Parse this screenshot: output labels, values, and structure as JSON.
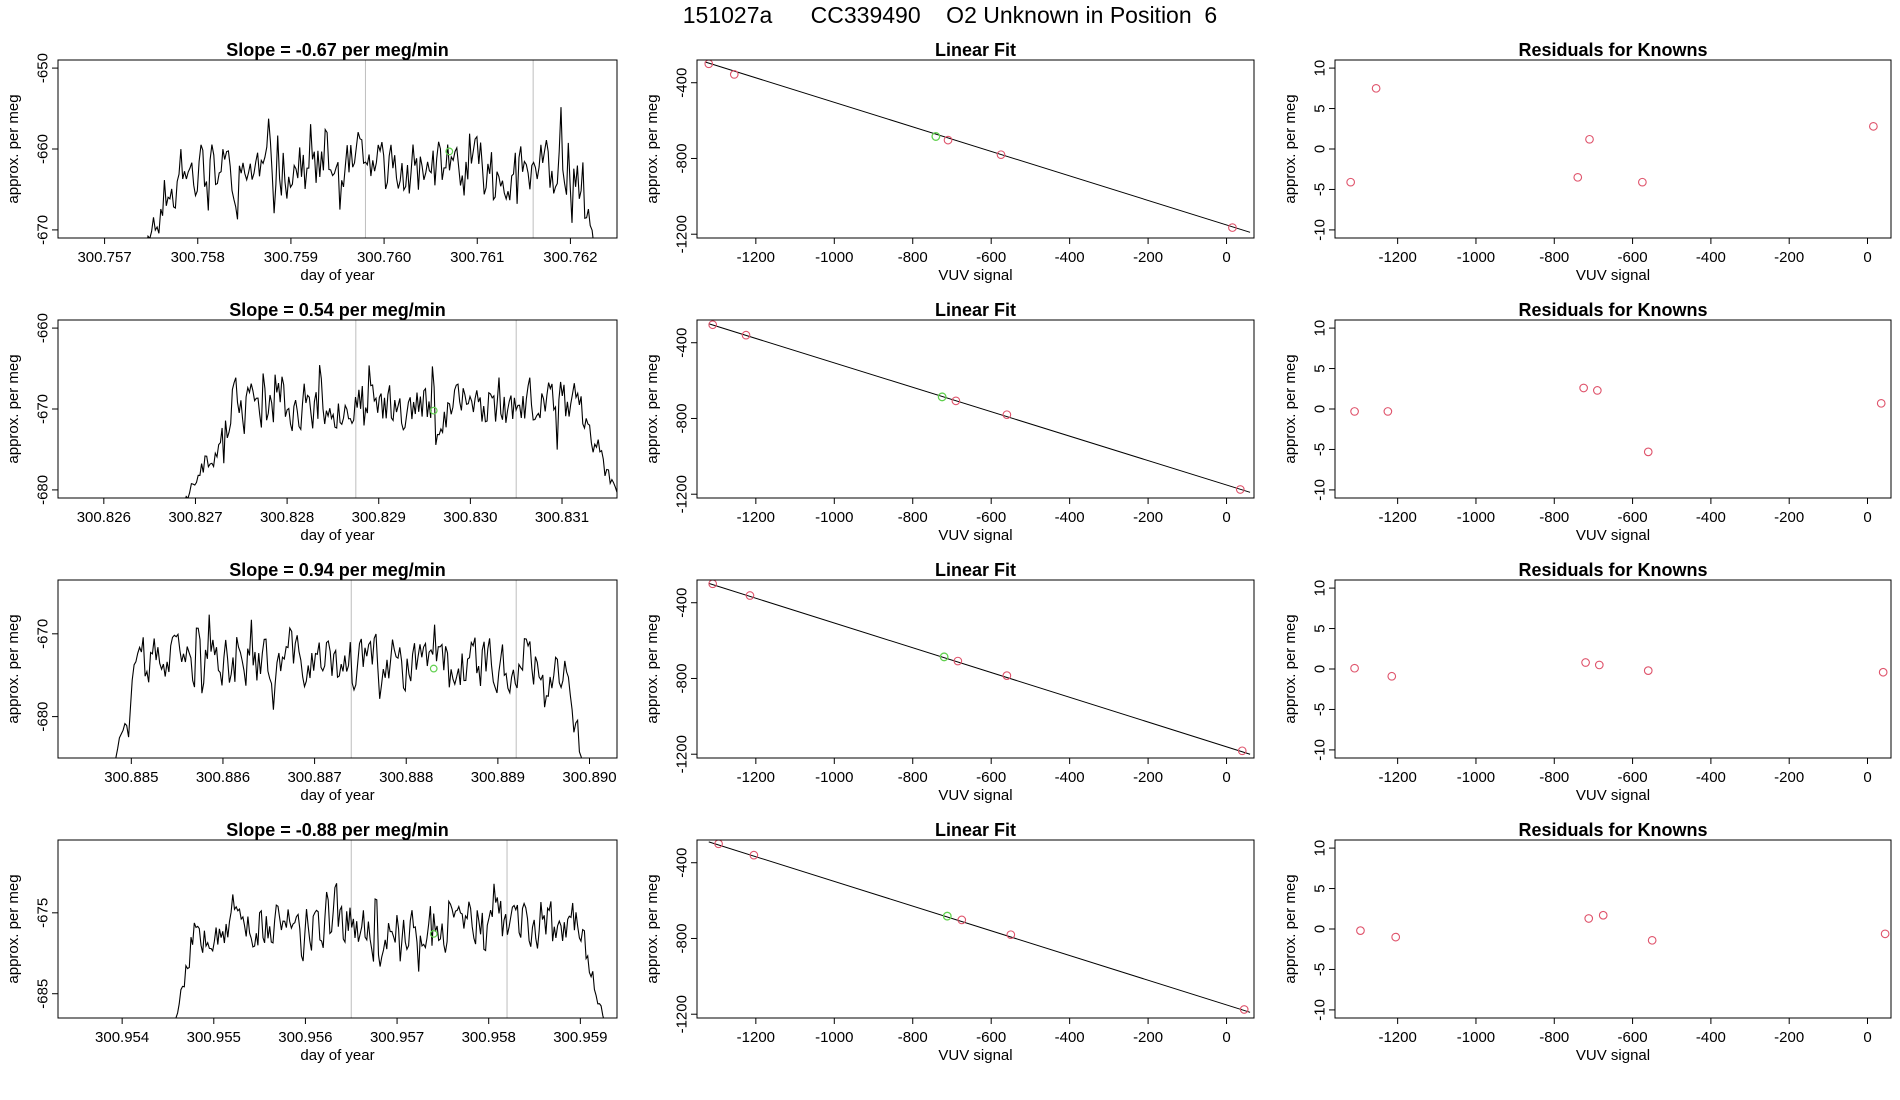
{
  "page": {
    "title": "151027a      CC339490    O2 Unknown in Position  6"
  },
  "chart_data": [
    {
      "type": "line",
      "row": 0,
      "panel": "timeseries",
      "title": "Slope =  -0.67  per meg/min",
      "xlabel": "day of year",
      "ylabel": "approx. per meg",
      "xlim": [
        300.7565,
        300.7625
      ],
      "ylim": [
        -671,
        -649
      ],
      "xticks": [
        300.757,
        300.758,
        300.759,
        300.76,
        300.761,
        300.762
      ],
      "xtick_labels": [
        "300.757",
        "300.758",
        "300.759",
        "300.760",
        "300.761",
        "300.762"
      ],
      "yticks": [
        -650,
        -660,
        -670
      ],
      "ytick_labels": [
        "-650",
        "-660",
        "-670"
      ],
      "vlines": [
        300.7598,
        300.7616
      ],
      "series": [
        {
          "start_x": 300.75725,
          "end_x": 300.76235,
          "start_y": -676,
          "end_y": -676,
          "level": -662.5,
          "amp": 3.2,
          "seed": 11,
          "rise": 0.0006,
          "fall": 0.0003
        }
      ],
      "marker": {
        "x": 300.7607,
        "y": -660.3
      }
    },
    {
      "type": "scatter",
      "row": 0,
      "panel": "fit",
      "title": "Linear Fit",
      "xlabel": "VUV signal",
      "ylabel": "approx. per meg",
      "xlim": [
        -1350,
        70
      ],
      "ylim": [
        -1220,
        -280
      ],
      "xticks": [
        -1200,
        -1000,
        -800,
        -600,
        -400,
        -200,
        0
      ],
      "xtick_labels": [
        "-1200",
        "-1000",
        "-800",
        "-600",
        "-400",
        "-200",
        "0"
      ],
      "yticks": [
        -400,
        -800,
        -1200
      ],
      "ytick_labels": [
        "-400",
        "-800",
        "-1200"
      ],
      "fit_line": {
        "x": [
          -1330,
          60
        ],
        "y": [
          -290,
          -1190
        ]
      },
      "knowns": {
        "x": [
          -1320,
          -1255,
          -710,
          -575,
          15
        ],
        "y": [
          -300,
          -356,
          -703,
          -780,
          -1165
        ]
      },
      "unknown": {
        "x": [
          -741
        ],
        "y": [
          -684
        ]
      }
    },
    {
      "type": "scatter",
      "row": 0,
      "panel": "residuals",
      "title": "Residuals for Knowns",
      "xlabel": "VUV signal",
      "ylabel": "approx. per meg",
      "xlim": [
        -1360,
        60
      ],
      "ylim": [
        -11,
        11
      ],
      "xticks": [
        -1200,
        -1000,
        -800,
        -600,
        -400,
        -200,
        0
      ],
      "xtick_labels": [
        "-1200",
        "-1000",
        "-800",
        "-600",
        "-400",
        "-200",
        "0"
      ],
      "yticks": [
        10,
        5,
        0,
        -5,
        -10
      ],
      "ytick_labels": [
        "10",
        "5",
        "0",
        "-5",
        "-10"
      ],
      "points": {
        "x": [
          -1320,
          -1255,
          -740,
          -710,
          -575,
          15
        ],
        "y": [
          -4.1,
          7.5,
          -3.5,
          1.2,
          -4.1,
          2.8
        ]
      }
    },
    {
      "type": "line",
      "row": 1,
      "panel": "timeseries",
      "title": "Slope =  0.54  per meg/min",
      "xlabel": "day of year",
      "ylabel": "approx. per meg",
      "xlim": [
        300.8255,
        300.8316
      ],
      "ylim": [
        -681,
        -659
      ],
      "xticks": [
        300.826,
        300.827,
        300.828,
        300.829,
        300.83,
        300.831
      ],
      "xtick_labels": [
        "300.826",
        "300.827",
        "300.828",
        "300.829",
        "300.830",
        "300.831"
      ],
      "yticks": [
        -660,
        -670,
        -680
      ],
      "ytick_labels": [
        "-660",
        "-670",
        "-680"
      ],
      "vlines": [
        300.82875,
        300.8305
      ],
      "series": [
        {
          "start_x": 300.82675,
          "end_x": 300.8316,
          "start_y": -684,
          "end_y": -680.3,
          "level": -669.5,
          "amp": 2.6,
          "seed": 23,
          "rise": 0.0007,
          "fall": 0.0004
        }
      ],
      "marker": {
        "x": 300.8296,
        "y": -670.2
      }
    },
    {
      "type": "scatter",
      "row": 1,
      "panel": "fit",
      "title": "Linear Fit",
      "xlabel": "VUV signal",
      "ylabel": "approx. per meg",
      "xlim": [
        -1350,
        70
      ],
      "ylim": [
        -1220,
        -280
      ],
      "xticks": [
        -1200,
        -1000,
        -800,
        -600,
        -400,
        -200,
        0
      ],
      "xtick_labels": [
        "-1200",
        "-1000",
        "-800",
        "-600",
        "-400",
        "-200",
        "0"
      ],
      "yticks": [
        -400,
        -800,
        -1200
      ],
      "ytick_labels": [
        "-400",
        "-800",
        "-1200"
      ],
      "fit_line": {
        "x": [
          -1320,
          60
        ],
        "y": [
          -300,
          -1190
        ]
      },
      "knowns": {
        "x": [
          -1310,
          -1225,
          -690,
          -560,
          35
        ],
        "y": [
          -305,
          -360,
          -707,
          -780,
          -1175
        ]
      },
      "unknown": {
        "x": [
          -725
        ],
        "y": [
          -686
        ]
      }
    },
    {
      "type": "scatter",
      "row": 1,
      "panel": "residuals",
      "title": "Residuals for Knowns",
      "xlabel": "VUV signal",
      "ylabel": "approx. per meg",
      "xlim": [
        -1360,
        60
      ],
      "ylim": [
        -11,
        11
      ],
      "xticks": [
        -1200,
        -1000,
        -800,
        -600,
        -400,
        -200,
        0
      ],
      "xtick_labels": [
        "-1200",
        "-1000",
        "-800",
        "-600",
        "-400",
        "-200",
        "0"
      ],
      "yticks": [
        10,
        5,
        0,
        -5,
        -10
      ],
      "ytick_labels": [
        "10",
        "5",
        "0",
        "-5",
        "-10"
      ],
      "points": {
        "x": [
          -1310,
          -1225,
          -725,
          -690,
          -560,
          35
        ],
        "y": [
          -0.3,
          -0.3,
          2.6,
          2.3,
          -5.3,
          0.7
        ]
      }
    },
    {
      "type": "line",
      "row": 2,
      "panel": "timeseries",
      "title": "Slope =  0.94  per meg/min",
      "xlabel": "day of year",
      "ylabel": "approx. per meg",
      "xlim": [
        300.8842,
        300.8903
      ],
      "ylim": [
        -685,
        -663.5
      ],
      "xticks": [
        300.885,
        300.886,
        300.887,
        300.888,
        300.889,
        300.89
      ],
      "xtick_labels": [
        "300.885",
        "300.886",
        "300.887",
        "300.888",
        "300.889",
        "300.890"
      ],
      "yticks": [
        -670,
        -680
      ],
      "ytick_labels": [
        "-670",
        "-680"
      ],
      "vlines": [
        300.8874,
        300.8892
      ],
      "series": [
        {
          "start_x": 300.88475,
          "end_x": 300.88995,
          "start_y": -688,
          "end_y": -688,
          "level": -673.5,
          "amp": 2.7,
          "seed": 37,
          "rise": 0.00035,
          "fall": 0.0002
        }
      ],
      "marker": {
        "x": 300.8883,
        "y": -674.2
      }
    },
    {
      "type": "scatter",
      "row": 2,
      "panel": "fit",
      "title": "Linear Fit",
      "xlabel": "VUV signal",
      "ylabel": "approx. per meg",
      "xlim": [
        -1350,
        70
      ],
      "ylim": [
        -1220,
        -280
      ],
      "xticks": [
        -1200,
        -1000,
        -800,
        -600,
        -400,
        -200,
        0
      ],
      "xtick_labels": [
        "-1200",
        "-1000",
        "-800",
        "-600",
        "-400",
        "-200",
        "0"
      ],
      "yticks": [
        -400,
        -800,
        -1200
      ],
      "ytick_labels": [
        "-400",
        "-800",
        "-1200"
      ],
      "fit_line": {
        "x": [
          -1320,
          60
        ],
        "y": [
          -298,
          -1200
        ]
      },
      "knowns": {
        "x": [
          -1310,
          -1215,
          -685,
          -560,
          40
        ],
        "y": [
          -300,
          -362,
          -708,
          -785,
          -1182
        ]
      },
      "unknown": {
        "x": [
          -720
        ],
        "y": [
          -686
        ]
      }
    },
    {
      "type": "scatter",
      "row": 2,
      "panel": "residuals",
      "title": "Residuals for Knowns",
      "xlabel": "VUV signal",
      "ylabel": "approx. per meg",
      "xlim": [
        -1360,
        60
      ],
      "ylim": [
        -11,
        11
      ],
      "xticks": [
        -1200,
        -1000,
        -800,
        -600,
        -400,
        -200,
        0
      ],
      "xtick_labels": [
        "-1200",
        "-1000",
        "-800",
        "-600",
        "-400",
        "-200",
        "0"
      ],
      "yticks": [
        10,
        5,
        0,
        -5,
        -10
      ],
      "ytick_labels": [
        "10",
        "5",
        "0",
        "-5",
        "-10"
      ],
      "points": {
        "x": [
          -1310,
          -1215,
          -720,
          -685,
          -560,
          40
        ],
        "y": [
          0.1,
          -0.9,
          0.8,
          0.5,
          -0.2,
          -0.4
        ]
      }
    },
    {
      "type": "line",
      "row": 3,
      "panel": "timeseries",
      "title": "Slope =  -0.88  per meg/min",
      "xlabel": "day of year",
      "ylabel": "approx. per meg",
      "xlim": [
        300.9533,
        300.9594
      ],
      "ylim": [
        -688,
        -666
      ],
      "xticks": [
        300.954,
        300.955,
        300.956,
        300.957,
        300.958,
        300.959
      ],
      "xtick_labels": [
        "300.954",
        "300.955",
        "300.956",
        "300.957",
        "300.958",
        "300.959"
      ],
      "yticks": [
        -675,
        -685
      ],
      "ytick_labels": [
        "-675",
        "-685"
      ],
      "vlines": [
        300.9565,
        300.9582
      ],
      "series": [
        {
          "start_x": 300.95455,
          "end_x": 300.9593,
          "start_y": -690,
          "end_y": -690,
          "level": -676.5,
          "amp": 2.6,
          "seed": 53,
          "rise": 0.00025,
          "fall": 0.0003
        }
      ],
      "marker": {
        "x": 300.9574,
        "y": -677.6
      }
    },
    {
      "type": "scatter",
      "row": 3,
      "panel": "fit",
      "title": "Linear Fit",
      "xlabel": "VUV signal",
      "ylabel": "approx. per meg",
      "xlim": [
        -1350,
        70
      ],
      "ylim": [
        -1220,
        -280
      ],
      "xticks": [
        -1200,
        -1000,
        -800,
        -600,
        -400,
        -200,
        0
      ],
      "xtick_labels": [
        "-1200",
        "-1000",
        "-800",
        "-600",
        "-400",
        "-200",
        "0"
      ],
      "yticks": [
        -400,
        -800,
        -1200
      ],
      "ytick_labels": [
        "-400",
        "-800",
        "-1200"
      ],
      "fit_line": {
        "x": [
          -1320,
          60
        ],
        "y": [
          -290,
          -1190
        ]
      },
      "knowns": {
        "x": [
          -1295,
          -1205,
          -675,
          -550,
          45
        ],
        "y": [
          -300,
          -360,
          -702,
          -780,
          -1175
        ]
      },
      "unknown": {
        "x": [
          -712
        ],
        "y": [
          -682
        ]
      }
    },
    {
      "type": "scatter",
      "row": 3,
      "panel": "residuals",
      "title": "Residuals for Knowns",
      "xlabel": "VUV signal",
      "ylabel": "approx. per meg",
      "xlim": [
        -1360,
        60
      ],
      "ylim": [
        -11,
        11
      ],
      "xticks": [
        -1200,
        -1000,
        -800,
        -600,
        -400,
        -200,
        0
      ],
      "xtick_labels": [
        "-1200",
        "-1000",
        "-800",
        "-600",
        "-400",
        "-200",
        "0"
      ],
      "yticks": [
        10,
        5,
        0,
        -5,
        -10
      ],
      "ytick_labels": [
        "10",
        "5",
        "0",
        "-5",
        "-10"
      ],
      "points": {
        "x": [
          -1295,
          -1205,
          -712,
          -675,
          -550,
          45
        ],
        "y": [
          -0.2,
          -1.0,
          1.3,
          1.7,
          -1.4,
          -0.6
        ]
      }
    }
  ],
  "colors": {
    "line": "#000000",
    "vline": "#bebebe",
    "known_marker": "#df536b",
    "unknown_marker": "#61d04f"
  }
}
